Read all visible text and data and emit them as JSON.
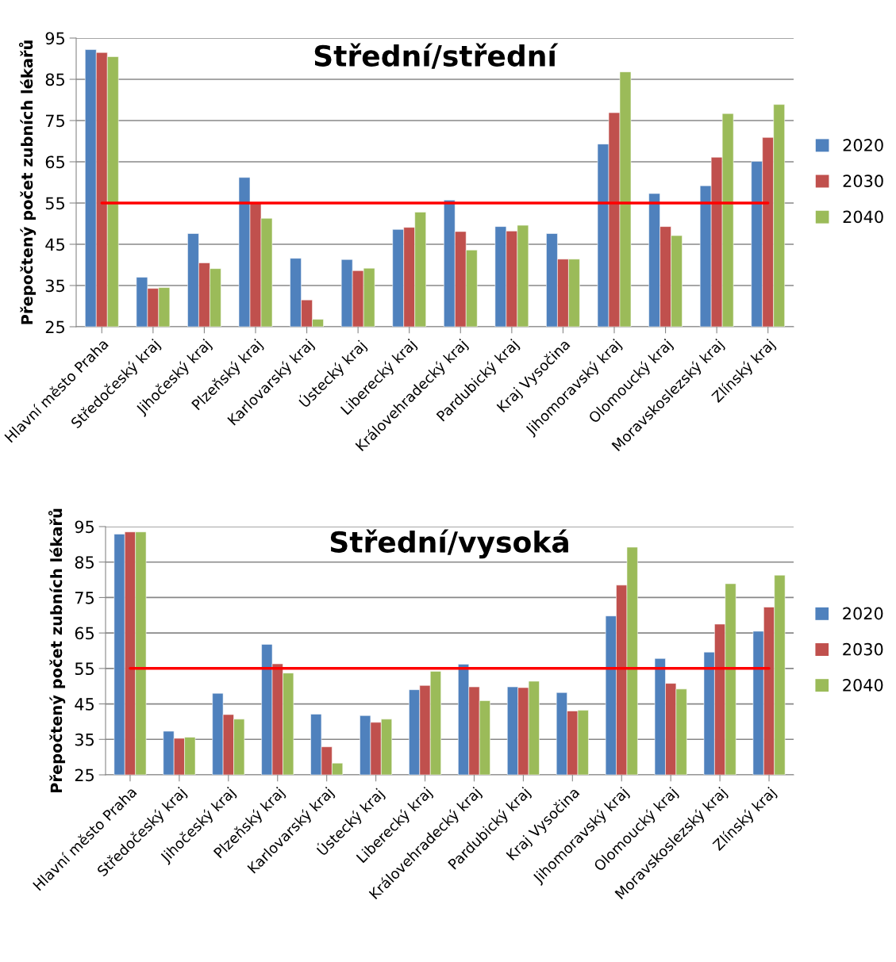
{
  "chart_data": [
    {
      "type": "bar",
      "title": "Střední/střední",
      "ylabel": "Přepočtený počet zubních lékařů",
      "categories": [
        "Hlavní město Praha",
        "Středočeský kraj",
        "Jihočeský kraj",
        "Plzeňský kraj",
        "Karlovarský kraj",
        "Ústecký kraj",
        "Liberecký kraj",
        "Královehradecký kraj",
        "Pardubický kraj",
        "Kraj Vysočina",
        "Jihomoravský kraj",
        "Olomoucký kraj",
        "Moravskoslezský kraj",
        "Zlínský kraj"
      ],
      "series": [
        {
          "name": "2020",
          "color": "#4f81bd",
          "values": [
            92.2,
            37.0,
            47.6,
            61.2,
            41.6,
            41.3,
            48.6,
            55.7,
            49.3,
            47.6,
            69.3,
            57.3,
            59.2,
            65.1
          ]
        },
        {
          "name": "2030",
          "color": "#c0504d",
          "values": [
            91.5,
            34.3,
            40.5,
            55.0,
            31.5,
            38.6,
            49.1,
            48.1,
            48.2,
            41.4,
            76.9,
            49.3,
            66.1,
            70.9
          ]
        },
        {
          "name": "2040",
          "color": "#9bbb59",
          "values": [
            90.5,
            34.5,
            39.1,
            51.3,
            26.8,
            39.2,
            52.8,
            43.6,
            49.6,
            41.4,
            86.8,
            47.1,
            76.7,
            78.9
          ]
        }
      ],
      "ylim": [
        25,
        95
      ],
      "yticks": [
        25,
        35,
        45,
        55,
        65,
        75,
        85,
        95
      ],
      "grid": "y",
      "legend": "right",
      "ref_lines": [
        {
          "axis": "y",
          "value": 55,
          "color": "#ff0000"
        }
      ]
    },
    {
      "type": "bar",
      "title": "Střední/vysoká",
      "ylabel": "Přepočtený počet zubních lékařů",
      "categories": [
        "Hlavní město Praha",
        "Středočeský kraj",
        "Jihočeský kraj",
        "Plzeňský kraj",
        "Karlovarský kraj",
        "Ústecký kraj",
        "Liberecký kraj",
        "Královehradecký kraj",
        "Pardubický kraj",
        "Kraj Vysočina",
        "Jihomoravský kraj",
        "Olomoucký kraj",
        "Moravskoslezský kraj",
        "Zlínský kraj"
      ],
      "series": [
        {
          "name": "2020",
          "color": "#4f81bd",
          "values": [
            92.9,
            37.3,
            48.0,
            61.8,
            42.1,
            41.7,
            49.0,
            56.2,
            49.8,
            48.2,
            69.8,
            57.8,
            59.6,
            65.5
          ]
        },
        {
          "name": "2030",
          "color": "#c0504d",
          "values": [
            93.5,
            35.3,
            42.0,
            56.3,
            32.9,
            39.8,
            50.2,
            49.8,
            49.6,
            43.0,
            78.5,
            50.8,
            67.5,
            72.3
          ]
        },
        {
          "name": "2040",
          "color": "#9bbb59",
          "values": [
            93.5,
            35.6,
            40.7,
            53.7,
            28.3,
            40.7,
            54.2,
            45.9,
            51.4,
            43.2,
            89.2,
            49.2,
            78.9,
            81.3
          ]
        }
      ],
      "ylim": [
        25,
        95
      ],
      "yticks": [
        25,
        35,
        45,
        55,
        65,
        75,
        85,
        95
      ],
      "grid": "y",
      "legend": "right",
      "ref_lines": [
        {
          "axis": "y",
          "value": 55,
          "color": "#ff0000"
        }
      ]
    }
  ]
}
